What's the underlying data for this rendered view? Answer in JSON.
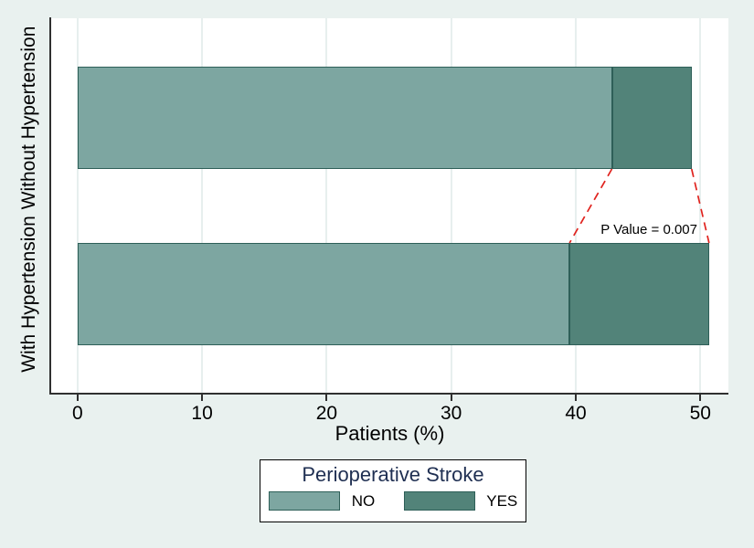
{
  "figure": {
    "background": "#e9f1ef",
    "plot_background": "#ffffff",
    "gridline_color": "#e7efee",
    "axis_color": "#303030"
  },
  "chart_data": {
    "type": "bar",
    "orientation": "horizontal",
    "stacked": true,
    "categories": [
      "Without Hypertension",
      "With Hypertension"
    ],
    "series": [
      {
        "name": "NO",
        "values": [
          42.9,
          39.5
        ],
        "color": "#7da6a1",
        "border_color": "#2e5f58"
      },
      {
        "name": "YES",
        "values": [
          6.4,
          11.2
        ],
        "color": "#528379",
        "border_color": "#2e5f58"
      }
    ],
    "totals": [
      49.3,
      50.7
    ],
    "xlabel": "Patients (%)",
    "x_ticks": [
      "0",
      "10",
      "20",
      "30",
      "40",
      "50"
    ],
    "xlim": [
      0,
      52.3
    ],
    "grid": true,
    "annotation": {
      "text": "P Value = 0.007",
      "line_color": "#e0231e",
      "line_style": "dashed"
    },
    "legend": {
      "title": "Perioperative Stroke",
      "title_color": "#1f2f52",
      "entries": [
        "NO",
        "YES"
      ],
      "position": "bottom-center"
    }
  }
}
